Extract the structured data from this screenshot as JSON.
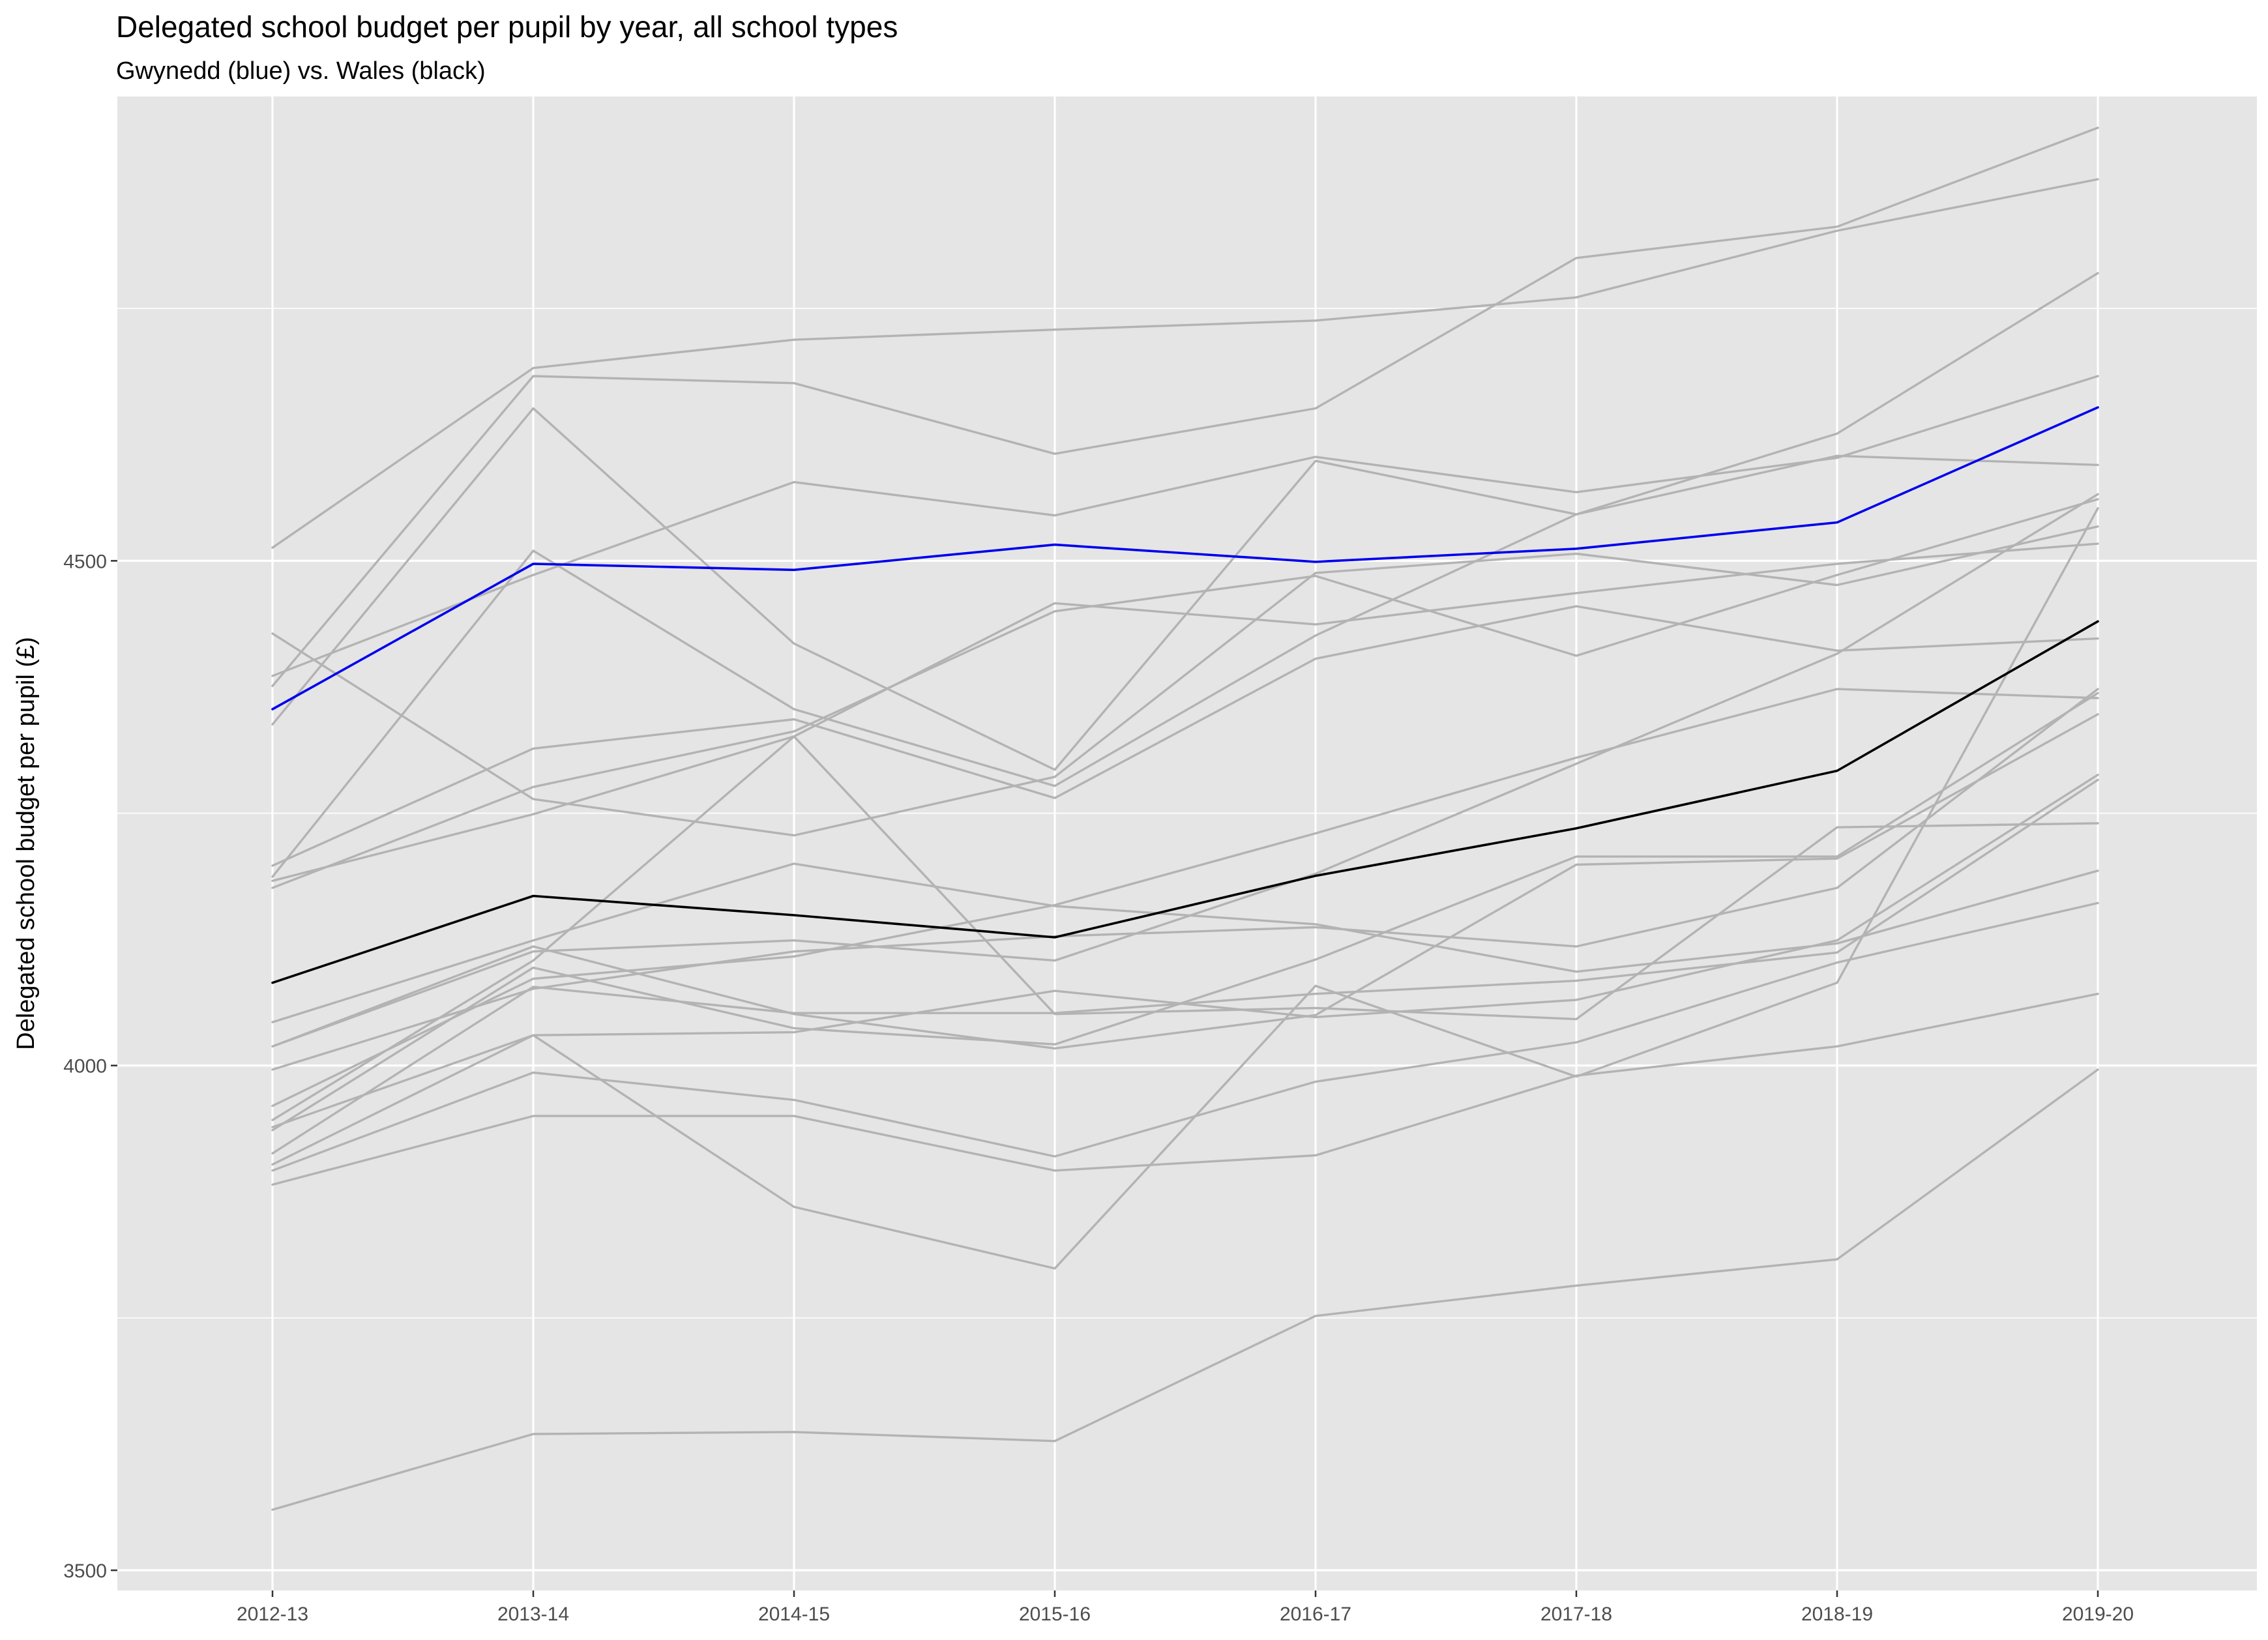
{
  "chart_data": {
    "type": "line",
    "title": "Delegated school budget per pupil by year, all school types",
    "subtitle": "Gwynedd (blue) vs. Wales (black)",
    "xlabel": "",
    "ylabel": "Delegated school budget per pupil (£)",
    "categories": [
      "2012-13",
      "2013-14",
      "2014-15",
      "2015-16",
      "2016-17",
      "2017-18",
      "2018-19",
      "2019-20"
    ],
    "ylim": [
      3480,
      4960
    ],
    "yticks": [
      3500,
      4000,
      4500
    ],
    "grid": true,
    "legend": "none",
    "highlight": {
      "gwynedd": {
        "values": [
          4353,
          4497,
          4491,
          4516,
          4499,
          4512,
          4538,
          4652
        ],
        "color": "#0000ee"
      },
      "wales": {
        "values": [
          4082,
          4168,
          4149,
          4127,
          4188,
          4235,
          4292,
          4440
        ],
        "color": "#000000"
      }
    },
    "background_color": "#b3b3b3",
    "series": [
      {
        "values": [
          4513,
          4691,
          4719,
          4729,
          4738,
          4761,
          4827,
          4878
        ]
      },
      {
        "values": [
          4376,
          4683,
          4676,
          4606,
          4651,
          4800,
          4831,
          4929
        ]
      },
      {
        "values": [
          4338,
          4651,
          4418,
          4293,
          4599,
          4546,
          4604,
          4595
        ]
      },
      {
        "values": [
          4386,
          4486,
          4578,
          4545,
          4603,
          4568,
          4602,
          4683
        ]
      },
      {
        "values": [
          4428,
          4264,
          4228,
          4286,
          4488,
          4507,
          4476,
          4534
        ]
      },
      {
        "values": [
          4187,
          4510,
          4353,
          4277,
          4426,
          4546,
          4626,
          4785
        ]
      },
      {
        "values": [
          4198,
          4314,
          4343,
          4265,
          4403,
          4455,
          4411,
          4423
        ]
      },
      {
        "values": [
          4183,
          4249,
          4326,
          4458,
          4437,
          4468,
          4497,
          4517
        ]
      },
      {
        "values": [
          4176,
          4276,
          4331,
          4450,
          4485,
          4406,
          4486,
          4561
        ]
      },
      {
        "values": [
          4019,
          4113,
          4124,
          4104,
          4190,
          4299,
          4408,
          4566
        ]
      },
      {
        "values": [
          3996,
          4076,
          4113,
          4128,
          4137,
          4118,
          4176,
          4373
        ]
      },
      {
        "values": [
          4043,
          4124,
          4200,
          4158,
          4140,
          4093,
          4121,
          4193
        ]
      },
      {
        "values": [
          4019,
          4118,
          4051,
          4017,
          4050,
          4199,
          4205,
          4348
        ]
      },
      {
        "values": [
          3960,
          4086,
          4108,
          4159,
          4230,
          4305,
          4373,
          4364
        ]
      },
      {
        "values": [
          3946,
          4104,
          4326,
          4051,
          4057,
          4046,
          4236,
          4240
        ]
      },
      {
        "values": [
          3936,
          4097,
          4037,
          4021,
          4105,
          4207,
          4207,
          4369
        ]
      },
      {
        "values": [
          3939,
          4030,
          4033,
          4074,
          4048,
          4065,
          4124,
          4288
        ]
      },
      {
        "values": [
          3913,
          4078,
          4052,
          4052,
          4071,
          4084,
          4112,
          4283
        ]
      },
      {
        "values": [
          3896,
          3993,
          3966,
          3910,
          3984,
          4023,
          4102,
          4161
        ]
      },
      {
        "values": [
          3882,
          3950,
          3950,
          3896,
          3911,
          3990,
          4019,
          4071
        ]
      },
      {
        "values": [
          3902,
          4030,
          3860,
          3799,
          4079,
          3989,
          4082,
          4552
        ]
      },
      {
        "values": [
          3560,
          3635,
          3637,
          3628,
          3752,
          3782,
          3808,
          3996
        ]
      }
    ]
  }
}
